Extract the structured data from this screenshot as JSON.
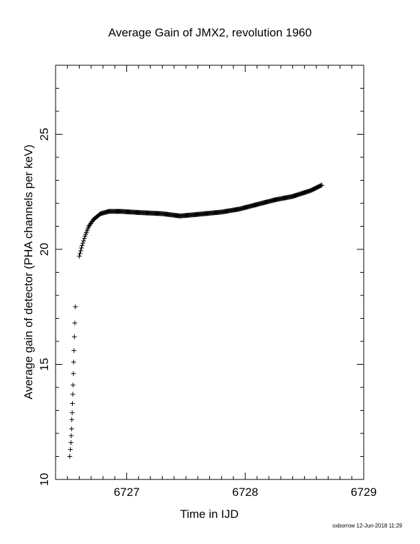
{
  "chart_data": {
    "type": "scatter",
    "title": "Average Gain of JMX2, revolution 1960",
    "xlabel": "Time in IJD",
    "ylabel": "Average gain of detector (PHA channels per keV)",
    "xlim": [
      6726.4,
      6729
    ],
    "ylim": [
      10,
      28
    ],
    "x_ticks": [
      6727,
      6728,
      6729
    ],
    "y_ticks": [
      10,
      15,
      20,
      25
    ],
    "x_minor_step": 0.1,
    "y_minor_step": 1,
    "marker": "plus",
    "grid": false,
    "series": [
      {
        "sparse_points": [
          [
            6726.52,
            11.0
          ],
          [
            6726.525,
            11.3
          ],
          [
            6726.53,
            11.6
          ],
          [
            6726.532,
            11.9
          ],
          [
            6726.535,
            12.2
          ],
          [
            6726.537,
            12.6
          ],
          [
            6726.54,
            12.9
          ],
          [
            6726.542,
            13.3
          ],
          [
            6726.545,
            13.7
          ],
          [
            6726.547,
            14.1
          ],
          [
            6726.55,
            14.6
          ],
          [
            6726.552,
            15.1
          ],
          [
            6726.555,
            15.6
          ],
          [
            6726.558,
            16.2
          ],
          [
            6726.562,
            16.8
          ],
          [
            6726.567,
            17.5
          ]
        ],
        "curve_points": [
          [
            6726.6,
            19.7
          ],
          [
            6726.62,
            20.1
          ],
          [
            6726.65,
            20.6
          ],
          [
            6726.68,
            21.0
          ],
          [
            6726.72,
            21.3
          ],
          [
            6726.78,
            21.55
          ],
          [
            6726.85,
            21.65
          ],
          [
            6726.95,
            21.65
          ],
          [
            6727.1,
            21.6
          ],
          [
            6727.3,
            21.55
          ],
          [
            6727.45,
            21.45
          ],
          [
            6727.6,
            21.52
          ],
          [
            6727.8,
            21.62
          ],
          [
            6727.95,
            21.75
          ],
          [
            6728.1,
            21.95
          ],
          [
            6728.25,
            22.15
          ],
          [
            6728.4,
            22.3
          ],
          [
            6728.55,
            22.55
          ],
          [
            6728.65,
            22.8
          ]
        ],
        "curve_sample_step": 0.006
      }
    ]
  },
  "footer": "oxborrow 12-Jun-2018 11:29"
}
